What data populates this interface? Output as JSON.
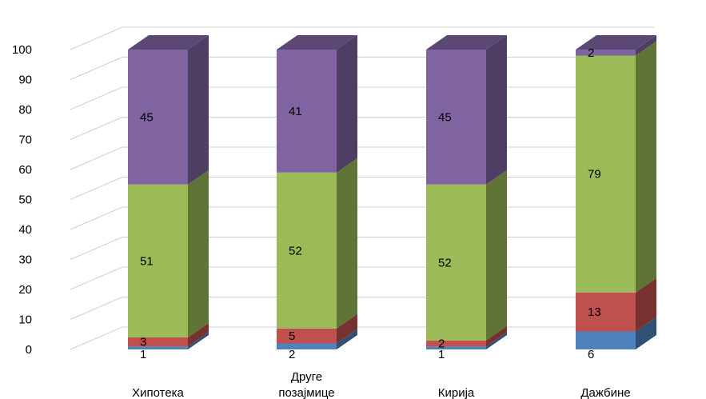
{
  "chart_data": {
    "type": "bar",
    "stacked": true,
    "three_d": true,
    "title": "",
    "xlabel": "",
    "ylabel": "",
    "ylim": [
      0,
      100
    ],
    "yticks": [
      0,
      10,
      20,
      30,
      40,
      50,
      60,
      70,
      80,
      90,
      100
    ],
    "grid": true,
    "legend": "none",
    "categories": [
      [
        "Хипотека"
      ],
      [
        "Друге",
        "позајмице"
      ],
      [
        "Кирија"
      ],
      [
        "Дажбине"
      ]
    ],
    "series": [
      {
        "color": "#4f81bd",
        "values": [
          1,
          2,
          1,
          6
        ]
      },
      {
        "color": "#c0504d",
        "values": [
          3,
          5,
          2,
          13
        ]
      },
      {
        "color": "#9bbb59",
        "values": [
          51,
          52,
          52,
          79
        ]
      },
      {
        "color": "#8064a2",
        "values": [
          45,
          41,
          45,
          2
        ]
      }
    ]
  }
}
